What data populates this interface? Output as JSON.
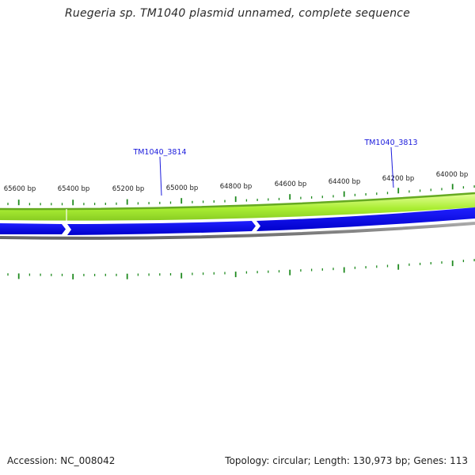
{
  "title": "Ruegeria sp. TM1040 plasmid unnamed, complete sequence",
  "ruler": {
    "labels": [
      "65600 bp",
      "65400 bp",
      "65200 bp",
      "65000 bp",
      "64800 bp",
      "64600 bp",
      "64400 bp",
      "64200 bp",
      "64000 bp"
    ],
    "tick_color": "#1f8a1f"
  },
  "genes": [
    {
      "name": "TM1040_3814",
      "strand": "reverse",
      "color": "#0000ee"
    },
    {
      "name": "TM1040_3813",
      "strand": "reverse",
      "color": "#0000ee"
    }
  ],
  "tracks": {
    "forward_band_color": "#aaee33",
    "forward_edge_color": "#66aa22",
    "reverse_band_color": "#0000ee",
    "backbone_color": "#777777"
  },
  "footer": {
    "accession": "Accession: NC_008042",
    "summary": "Topology: circular; Length: 130,973 bp; Genes: 113"
  }
}
